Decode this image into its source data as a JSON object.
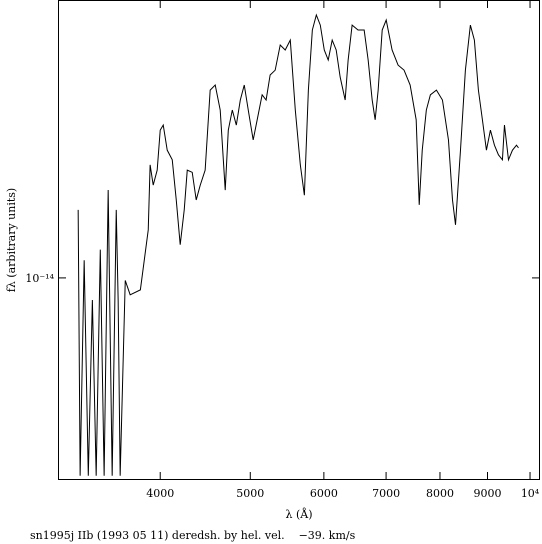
{
  "chart_data": {
    "type": "line",
    "xlabel": "λ (Å)",
    "ylabel": "fλ (arbitrary units)",
    "caption": "sn1995j IIb (1993 05 11) deredsh. by hel. vel.    −39. km/s",
    "xscale": "log",
    "yscale": "log",
    "xlim": [
      3105,
      10250
    ],
    "ylim": [
      2.03e-15,
      8.96e-14
    ],
    "xticks": [
      4000,
      5000,
      6000,
      7000,
      8000,
      9000,
      {
        "value": 10000,
        "label": "10⁴"
      }
    ],
    "yticks": [
      {
        "value": 1e-14,
        "label": "10⁻¹⁴"
      }
    ],
    "x": [
      3264,
      3280,
      3313,
      3347,
      3381,
      3413,
      3448,
      3481,
      3516,
      3551,
      3587,
      3604,
      3622,
      3668,
      3713,
      3808,
      3883,
      3901,
      3931,
      3970,
      4000,
      4030,
      4070,
      4121,
      4162,
      4203,
      4245,
      4277,
      4330,
      4373,
      4417,
      4471,
      4527,
      4584,
      4641,
      4699,
      4735,
      4782,
      4830,
      4878,
      4926,
      4975,
      5036,
      5086,
      5149,
      5200,
      5252,
      5318,
      5385,
      5452,
      5521,
      5590,
      5660,
      5717,
      5774,
      5831,
      5889,
      5947,
      6006,
      6065,
      6125,
      6186,
      6247,
      6325,
      6372,
      6435,
      6530,
      6630,
      6696,
      6763,
      6813,
      6864,
      6933,
      7002,
      7105,
      7211,
      7319,
      7430,
      7542,
      7599,
      7656,
      7734,
      7812,
      7930,
      8049,
      8170,
      8252,
      8314,
      8417,
      8520,
      8626,
      8712,
      8799,
      8887,
      8976,
      9065,
      9156,
      9247,
      9339,
      9386,
      9480,
      9574,
      9670,
      9718
    ],
    "series": [
      {
        "name": "sn1995j",
        "color": "#000000",
        "values": [
          1.71e-14,
          2.1e-15,
          1.15e-14,
          2.1e-15,
          8.4e-15,
          2.1e-15,
          1.25e-14,
          2.1e-15,
          2e-14,
          2.1e-15,
          1.71e-14,
          8.4e-15,
          2.1e-15,
          9.8e-15,
          8.75e-15,
          9.1e-15,
          1.46e-14,
          2.44e-14,
          2.08e-14,
          2.34e-14,
          3.21e-14,
          3.34e-14,
          2.74e-14,
          2.54e-14,
          1.85e-14,
          1.3e-14,
          1.71e-14,
          2.34e-14,
          2.3e-14,
          1.85e-14,
          2.08e-14,
          2.34e-14,
          4.4e-14,
          4.58e-14,
          3.76e-14,
          2e-14,
          3.21e-14,
          3.76e-14,
          3.34e-14,
          4.07e-14,
          4.58e-14,
          3.76e-14,
          2.97e-14,
          3.48e-14,
          4.24e-14,
          4.07e-14,
          4.96e-14,
          5.15e-14,
          6.28e-14,
          6.04e-14,
          6.53e-14,
          3.76e-14,
          2.44e-14,
          1.92e-14,
          4.4e-14,
          7.07e-14,
          7.96e-14,
          7.35e-14,
          6.04e-14,
          5.58e-14,
          6.53e-14,
          6.04e-14,
          4.88e-14,
          4.07e-14,
          5.58e-14,
          7.35e-14,
          7.07e-14,
          7.07e-14,
          5.58e-14,
          4.07e-14,
          3.48e-14,
          4.4e-14,
          7.07e-14,
          7.65e-14,
          6.04e-14,
          5.36e-14,
          5.15e-14,
          4.58e-14,
          3.48e-14,
          1.78e-14,
          2.74e-14,
          3.76e-14,
          4.24e-14,
          4.4e-14,
          4.07e-14,
          2.97e-14,
          1.85e-14,
          1.52e-14,
          2.74e-14,
          5.15e-14,
          7.35e-14,
          6.53e-14,
          4.4e-14,
          3.48e-14,
          2.74e-14,
          3.21e-14,
          2.85e-14,
          2.64e-14,
          2.54e-14,
          3.34e-14,
          2.54e-14,
          2.74e-14,
          2.85e-14,
          2.79e-14
        ]
      }
    ]
  }
}
